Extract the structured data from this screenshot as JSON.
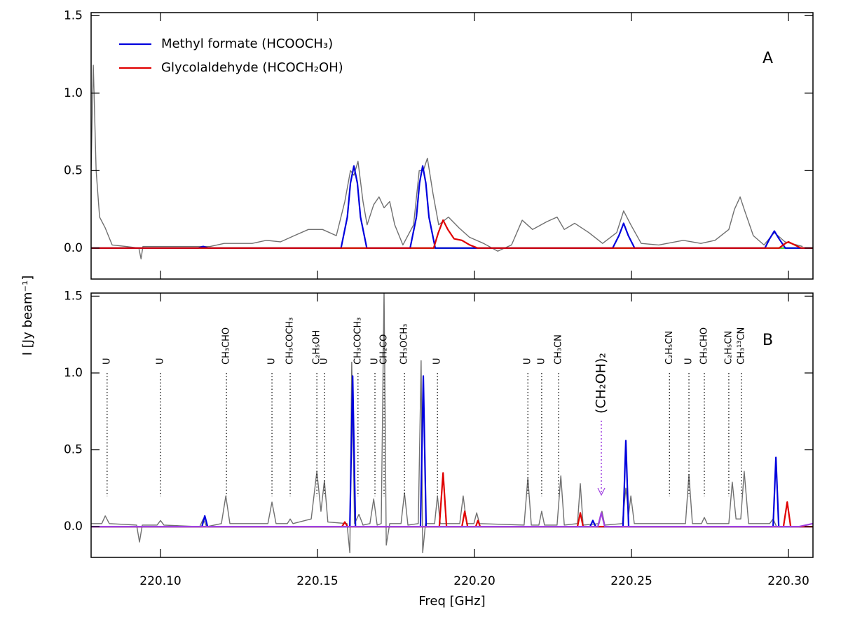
{
  "chart_data": [
    {
      "type": "line",
      "label": "A",
      "ylabel": "I [Jy beam⁻¹]",
      "xlim": [
        220.0779,
        220.3078
      ],
      "ylim": [
        -0.2,
        1.52
      ],
      "xticks": [
        220.1,
        220.15,
        220.2,
        220.25,
        220.3
      ],
      "yticks": [
        {
          "value": 0,
          "label": "0.0"
        },
        0.5,
        {
          "value": 1,
          "label": "1.0"
        },
        1.5
      ],
      "series": [
        {
          "color": "#33cc33",
          "x": [
            220.0779,
            220.3078
          ],
          "values": [
            0,
            0
          ]
        },
        {
          "color": "#707070",
          "x": [
            220.0779,
            220.0786,
            220.0795,
            220.0806,
            220.0824,
            220.0846,
            220.0891,
            220.0931,
            220.0938,
            220.0944,
            220.1069,
            220.1158,
            220.1203,
            220.1292,
            220.1337,
            220.1382,
            220.1426,
            220.1471,
            220.1516,
            220.156,
            220.1587,
            220.1605,
            220.1616,
            220.1629,
            220.1645,
            220.1658,
            220.1679,
            220.1696,
            220.1712,
            220.173,
            220.1746,
            220.1772,
            220.1806,
            220.1824,
            220.1837,
            220.185,
            220.1868,
            220.1886,
            220.1917,
            220.1951,
            220.1984,
            220.2029,
            220.2074,
            220.2118,
            220.2152,
            220.2185,
            220.223,
            220.2263,
            220.2286,
            220.2319,
            220.2364,
            220.2408,
            220.2453,
            220.2475,
            220.2498,
            220.2531,
            220.2587,
            220.2665,
            220.2721,
            220.2766,
            220.281,
            220.2828,
            220.2846,
            220.2859,
            220.2888,
            220.2922,
            220.2955,
            220.2989,
            220.3045
          ],
          "values": [
            0.5,
            1.18,
            0.5,
            0.2,
            0.13,
            0.02,
            0.01,
            0.0,
            -0.07,
            0.01,
            0.01,
            0.01,
            0.03,
            0.03,
            0.05,
            0.04,
            0.08,
            0.12,
            0.12,
            0.08,
            0.3,
            0.5,
            0.47,
            0.56,
            0.3,
            0.15,
            0.28,
            0.33,
            0.26,
            0.3,
            0.15,
            0.02,
            0.15,
            0.5,
            0.5,
            0.58,
            0.35,
            0.15,
            0.2,
            0.13,
            0.07,
            0.03,
            -0.02,
            0.02,
            0.18,
            0.12,
            0.17,
            0.2,
            0.12,
            0.16,
            0.1,
            0.03,
            0.1,
            0.24,
            0.15,
            0.03,
            0.02,
            0.05,
            0.03,
            0.05,
            0.12,
            0.25,
            0.33,
            0.25,
            0.08,
            0.02,
            0.1,
            0.04,
            0.01
          ]
        },
        {
          "name": "Methyl formate (HCOOCH₃)",
          "color": "#0000dd",
          "x": [
            220.0779,
            220.112,
            220.1136,
            220.1152,
            220.1575,
            220.1595,
            220.1605,
            220.1616,
            220.1627,
            220.1637,
            220.1657,
            220.1795,
            220.1815,
            220.1825,
            220.1835,
            220.1845,
            220.1855,
            220.1875,
            220.244,
            220.246,
            220.2475,
            220.249,
            220.251,
            220.2925,
            220.294,
            220.2955,
            220.297,
            220.299,
            220.3078
          ],
          "values": [
            0,
            0,
            0.01,
            0,
            0,
            0.2,
            0.42,
            0.53,
            0.42,
            0.2,
            0,
            0,
            0.2,
            0.42,
            0.53,
            0.42,
            0.2,
            0,
            0,
            0.08,
            0.16,
            0.08,
            0,
            0,
            0.06,
            0.11,
            0.06,
            0,
            0
          ]
        },
        {
          "name": "Glycolaldehyde (HCOCH₂OH)",
          "color": "#e00000",
          "x": [
            220.0779,
            220.187,
            220.1885,
            220.19,
            220.1915,
            220.1935,
            220.196,
            220.1985,
            220.201,
            220.297,
            220.299,
            220.3,
            220.302,
            220.304,
            220.3078
          ],
          "values": [
            0,
            0,
            0.1,
            0.18,
            0.12,
            0.06,
            0.05,
            0.02,
            0,
            0,
            0.03,
            0.04,
            0.02,
            0,
            0
          ]
        }
      ]
    },
    {
      "type": "line",
      "label": "B",
      "xlabel": "Freq [GHz]",
      "xlim": [
        220.0779,
        220.3078
      ],
      "ylim": [
        -0.2,
        1.52
      ],
      "xticks": [
        {
          "value": 220.1,
          "label": "220.10"
        },
        220.15,
        {
          "value": 220.2,
          "label": "220.20"
        },
        220.25,
        {
          "value": 220.3,
          "label": "220.30"
        }
      ],
      "yticks": [
        {
          "value": 0,
          "label": "0.0"
        },
        0.5,
        {
          "value": 1,
          "label": "1.0"
        },
        1.5
      ],
      "series": [
        {
          "color": "#33cc33",
          "x": [
            220.0779,
            220.3078
          ],
          "values": [
            0,
            0
          ]
        },
        {
          "color": "#707070",
          "x": [
            220.0779,
            220.0813,
            220.0824,
            220.0837,
            220.0924,
            220.0933,
            220.0942,
            220.0989,
            220.1,
            220.1011,
            220.1125,
            220.1136,
            220.1147,
            220.1194,
            220.1208,
            220.1221,
            220.1342,
            220.1355,
            220.1368,
            220.1404,
            220.1413,
            220.1422,
            220.148,
            220.1498,
            220.1511,
            220.1522,
            220.1533,
            220.1594,
            220.1603,
            220.1609,
            220.1618,
            220.1632,
            220.1645,
            220.1667,
            220.1679,
            220.169,
            220.1703,
            220.1712,
            220.1719,
            220.173,
            220.1766,
            220.1777,
            220.1788,
            220.1821,
            220.183,
            220.1835,
            220.1844,
            220.1873,
            220.1882,
            220.1891,
            220.1953,
            220.1964,
            220.1975,
            220.1998,
            220.2007,
            220.2016,
            220.2158,
            220.217,
            220.2181,
            220.2205,
            220.2214,
            220.2223,
            220.2263,
            220.2275,
            220.2286,
            220.2328,
            220.2337,
            220.2346,
            220.2397,
            220.2406,
            220.2415,
            220.2471,
            220.2482,
            220.2491,
            220.2498,
            220.2509,
            220.2672,
            220.2683,
            220.2694,
            220.2723,
            220.2732,
            220.2741,
            220.281,
            220.2821,
            220.2833,
            220.2848,
            220.2859,
            220.2873,
            220.294,
            220.2951,
            220.2962,
            220.3022
          ],
          "values": [
            0.02,
            0.02,
            0.07,
            0.02,
            0.01,
            -0.1,
            0.01,
            0.01,
            0.04,
            0.01,
            0,
            0.05,
            0,
            0.02,
            0.2,
            0.02,
            0.02,
            0.16,
            0.02,
            0.02,
            0.05,
            0.02,
            0.05,
            0.36,
            0.1,
            0.3,
            0.03,
            0.02,
            -0.17,
            1.07,
            0.02,
            0.08,
            0.01,
            0.02,
            0.18,
            0.01,
            0.02,
            1.55,
            -0.12,
            0.02,
            0.02,
            0.22,
            0.01,
            0.02,
            1.08,
            -0.17,
            0.02,
            0.02,
            0.2,
            0.02,
            0.02,
            0.2,
            0.02,
            0.02,
            0.09,
            0.02,
            0.01,
            0.32,
            0.01,
            0.01,
            0.1,
            0.01,
            0.01,
            0.33,
            0.01,
            0.02,
            0.28,
            0.01,
            0.02,
            0.1,
            0.01,
            0.02,
            0.25,
            0.08,
            0.2,
            0.02,
            0.02,
            0.34,
            0.02,
            0.02,
            0.06,
            0.02,
            0.02,
            0.29,
            0.05,
            0.05,
            0.36,
            0.02,
            0.02,
            0.05,
            0,
            0
          ]
        },
        {
          "color": "#0000dd",
          "x": [
            220.0779,
            220.1132,
            220.1141,
            220.115,
            220.1603,
            220.1612,
            220.1621,
            220.1828,
            220.1837,
            220.1846,
            220.2368,
            220.2377,
            220.2386,
            220.2473,
            220.2482,
            220.2491,
            220.2951,
            220.296,
            220.2969,
            220.3078
          ],
          "values": [
            0,
            0,
            0.07,
            0,
            0,
            0.98,
            0,
            0,
            0.98,
            0,
            0,
            0.04,
            0,
            0,
            0.56,
            0,
            0,
            0.45,
            0,
            0
          ]
        },
        {
          "color": "#e00000",
          "x": [
            220.0779,
            220.1578,
            220.1587,
            220.1596,
            220.1888,
            220.19,
            220.1911,
            220.196,
            220.1969,
            220.1978,
            220.2004,
            220.2011,
            220.2018,
            220.2328,
            220.2337,
            220.2346,
            220.2984,
            220.2996,
            220.3007,
            220.3078
          ],
          "values": [
            0,
            0,
            0.03,
            0,
            0,
            0.35,
            0,
            0,
            0.1,
            0,
            0,
            0.04,
            0,
            0,
            0.09,
            0,
            0,
            0.16,
            0,
            0
          ]
        },
        {
          "color": "#a040e0",
          "x": [
            220.0779,
            220.2393,
            220.2404,
            220.2415,
            220.3033,
            220.3078
          ],
          "values": [
            0,
            0,
            0.09,
            0,
            0,
            0.02
          ]
        }
      ],
      "line_ids": [
        {
          "label": "U",
          "x": 220.083
        },
        {
          "label": "U",
          "x": 220.1
        },
        {
          "label": "CH₃CHO",
          "x": 220.121
        },
        {
          "label": "U",
          "x": 220.1355
        },
        {
          "label": "CH₃COCH₃",
          "x": 220.1413
        },
        {
          "label": "C₂H₅OH",
          "x": 220.1498
        },
        {
          "label": "U",
          "x": 220.1522
        },
        {
          "label": "CH₃COCH₃",
          "x": 220.1629
        },
        {
          "label": "U",
          "x": 220.1683
        },
        {
          "label": "CH₂CO",
          "x": 220.1712
        },
        {
          "label": "CH₃OCH₃",
          "x": 220.1777
        },
        {
          "label": "U",
          "x": 220.1882
        },
        {
          "label": "U",
          "x": 220.217
        },
        {
          "label": "U",
          "x": 220.2214
        },
        {
          "label": "CH₃CN",
          "x": 220.2268
        },
        {
          "label": "C₂H₅CN",
          "x": 220.2621
        },
        {
          "label": "U",
          "x": 220.2683
        },
        {
          "label": "CH₃CHO",
          "x": 220.2732
        },
        {
          "label": "C₂H₅CN",
          "x": 220.281
        },
        {
          "label": "CH₃¹³CN",
          "x": 220.285
        }
      ],
      "annotation": {
        "text": "(CH₂OH)₂",
        "x": 220.2404,
        "color": "#a040e0"
      }
    }
  ]
}
